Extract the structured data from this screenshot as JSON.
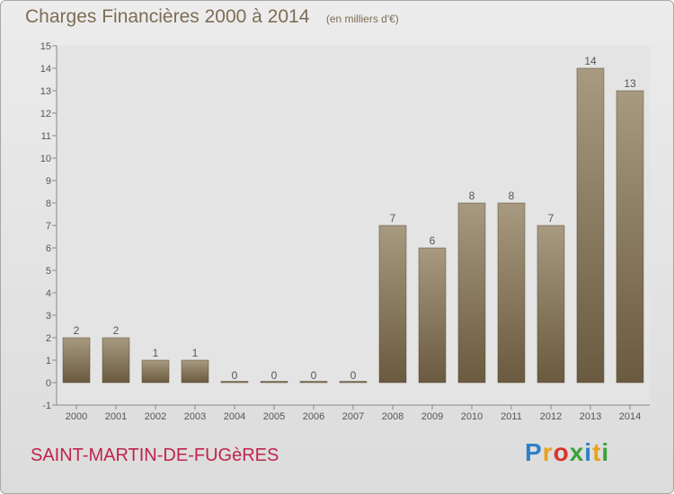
{
  "header": {
    "title": "Charges Financières 2000 à 2014",
    "subtitle": "(en milliers d'€)"
  },
  "footer": {
    "commune": "SAINT-MARTIN-DE-FUGèRES",
    "brand_letters": [
      "P",
      "r",
      "o",
      "x",
      "i",
      "t",
      "i"
    ],
    "brand_colors": [
      "#2f7fc6",
      "#e8a21a",
      "#d9342b",
      "#3aa23a",
      "#2f7fc6",
      "#e8a21a",
      "#3aa23a"
    ]
  },
  "chart_data": {
    "type": "bar",
    "categories": [
      "2000",
      "2001",
      "2002",
      "2003",
      "2004",
      "2005",
      "2006",
      "2007",
      "2008",
      "2009",
      "2010",
      "2011",
      "2012",
      "2013",
      "2014"
    ],
    "values": [
      2,
      2,
      1,
      1,
      0,
      0,
      0,
      0,
      7,
      6,
      8,
      8,
      7,
      14,
      13
    ],
    "data_labels": [
      "2",
      "2",
      "1",
      "1",
      "0",
      "0",
      "0",
      "0",
      "7",
      "6",
      "8",
      "8",
      "7",
      "14",
      "13"
    ],
    "yticks": [
      -1,
      0,
      1,
      2,
      3,
      4,
      5,
      6,
      7,
      8,
      9,
      10,
      11,
      12,
      13,
      14,
      15
    ],
    "ylim": [
      -1,
      15
    ],
    "grid": false,
    "legend": "none",
    "colors": {
      "bar_top": "#a79a80",
      "bar_bottom": "#6a5a3f",
      "bar_edge": "#5a4c35",
      "text": "#555555",
      "axis": "#888888"
    }
  }
}
